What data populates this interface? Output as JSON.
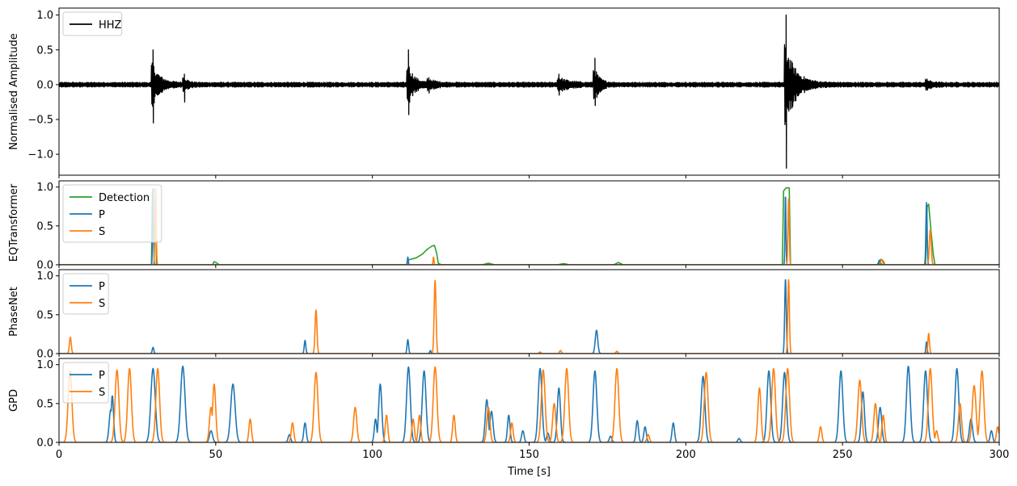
{
  "chart_data": {
    "type": "line",
    "xlabel": "Time [s]",
    "xlim": [
      0,
      300
    ],
    "xticks": [
      "0",
      "50",
      "100",
      "150",
      "200",
      "250",
      "300"
    ],
    "sharex": true,
    "panels": [
      {
        "ylabel": "Normalised Amplitude",
        "ylim": [
          -1.3,
          1.1
        ],
        "yticks": [
          {
            "value": 1.0,
            "label": "1.0"
          },
          {
            "value": 0.5,
            "label": "0.5"
          },
          {
            "value": 0.0,
            "label": "0.0"
          },
          {
            "value": -0.5,
            "label": "−0.5"
          },
          {
            "value": -1.0,
            "label": "−1.0"
          }
        ],
        "legend": "top-left",
        "series": [
          {
            "name": "HHZ",
            "color": "#000000",
            "style": "waveform",
            "noise": 0.035,
            "events": [
              {
                "t": 30,
                "amp": 0.5,
                "min": -0.55,
                "decay": 1.5
              },
              {
                "t": 40,
                "amp": 0.15,
                "min": -0.25,
                "decay": 0.8
              },
              {
                "t": 111.5,
                "amp": 0.5,
                "min": -0.43,
                "decay": 1.2
              },
              {
                "t": 118,
                "amp": 0.1,
                "min": -0.12,
                "decay": 1.5
              },
              {
                "t": 159.5,
                "amp": 0.15,
                "min": -0.15,
                "decay": 2.0
              },
              {
                "t": 171,
                "amp": 0.38,
                "min": -0.3,
                "decay": 1.0
              },
              {
                "t": 232,
                "amp": 1.0,
                "min": -1.2,
                "decay": 2.0
              },
              {
                "t": 277,
                "amp": 0.08,
                "min": -0.08,
                "decay": 1.0
              }
            ]
          }
        ]
      },
      {
        "ylabel": "EQTransformer",
        "ylim": [
          0,
          1.08
        ],
        "yticks": [
          {
            "value": 0.0,
            "label": "0.0"
          },
          {
            "value": 0.5,
            "label": "0.5"
          },
          {
            "value": 1.0,
            "label": "1.0"
          }
        ],
        "legend": "top-left",
        "series": [
          {
            "name": "Detection",
            "color": "#2ca02c",
            "style": "segments",
            "segments": [
              [
                [
                  0,
                  0
                ],
                [
                  29.5,
                  0
                ],
                [
                  29.8,
                  0.95
                ],
                [
                  30.8,
                  0.95
                ],
                [
                  31.1,
                  0
                ],
                [
                  49,
                  0
                ],
                [
                  49.5,
                  0.04
                ],
                [
                  50.5,
                  0.02
                ],
                [
                  51,
                  0
                ],
                [
                  111,
                  0
                ],
                [
                  111.3,
                  0.06
                ],
                [
                  114,
                  0.09
                ],
                [
                  116,
                  0.14
                ],
                [
                  117.5,
                  0.2
                ],
                [
                  119,
                  0.24
                ],
                [
                  119.8,
                  0.25
                ],
                [
                  120.5,
                  0.15
                ],
                [
                  121,
                  0.02
                ],
                [
                  122,
                  0
                ],
                [
                  135,
                  0
                ],
                [
                  137,
                  0.02
                ],
                [
                  139,
                  0
                ],
                [
                  159,
                  0
                ],
                [
                  161,
                  0.015
                ],
                [
                  163,
                  0
                ],
                [
                  177,
                  0
                ],
                [
                  178.5,
                  0.03
                ],
                [
                  180,
                  0
                ],
                [
                  230.8,
                  0
                ],
                [
                  231.2,
                  0.95
                ],
                [
                  232,
                  0.99
                ],
                [
                  233,
                  0.99
                ],
                [
                  233.4,
                  0
                ],
                [
                  261.5,
                  0
                ],
                [
                  262.2,
                  0.07
                ],
                [
                  263,
                  0.05
                ],
                [
                  263.5,
                  0
                ],
                [
                  276.5,
                  0
                ],
                [
                  277,
                  0.75
                ],
                [
                  277.5,
                  0.78
                ],
                [
                  278.2,
                  0.45
                ],
                [
                  279,
                  0.12
                ],
                [
                  279.5,
                  0
                ],
                [
                  300,
                  0
                ]
              ]
            ]
          },
          {
            "name": "P",
            "color": "#1f77b4",
            "style": "peaks",
            "peaks": [
              {
                "t": 30,
                "h": 0.98,
                "w": 0.15
              },
              {
                "t": 111.3,
                "h": 0.1,
                "w": 0.15
              },
              {
                "t": 231.8,
                "h": 0.9,
                "w": 0.15
              },
              {
                "t": 261.8,
                "h": 0.06,
                "w": 0.3
              },
              {
                "t": 276.8,
                "h": 0.8,
                "w": 0.2
              }
            ]
          },
          {
            "name": "S",
            "color": "#ff7f0e",
            "style": "peaks",
            "peaks": [
              {
                "t": 30.8,
                "h": 0.98,
                "w": 0.2
              },
              {
                "t": 119.5,
                "h": 0.1,
                "w": 0.15
              },
              {
                "t": 232.8,
                "h": 0.85,
                "w": 0.2
              },
              {
                "t": 262.5,
                "h": 0.07,
                "w": 0.3
              },
              {
                "t": 278,
                "h": 0.45,
                "w": 0.3
              }
            ]
          }
        ]
      },
      {
        "ylabel": "PhaseNet",
        "ylim": [
          0,
          1.08
        ],
        "yticks": [
          {
            "value": 0.0,
            "label": "0.0"
          },
          {
            "value": 0.5,
            "label": "0.5"
          },
          {
            "value": 1.0,
            "label": "1.0"
          }
        ],
        "legend": "top-left",
        "series": [
          {
            "name": "P",
            "color": "#1f77b4",
            "style": "peaks",
            "peaks": [
              {
                "t": 30,
                "h": 0.08,
                "w": 0.25
              },
              {
                "t": 78.5,
                "h": 0.17,
                "w": 0.25
              },
              {
                "t": 111.3,
                "h": 0.18,
                "w": 0.25
              },
              {
                "t": 118.5,
                "h": 0.04,
                "w": 0.2
              },
              {
                "t": 171.5,
                "h": 0.3,
                "w": 0.4
              },
              {
                "t": 231.8,
                "h": 0.96,
                "w": 0.25
              },
              {
                "t": 276.8,
                "h": 0.15,
                "w": 0.2
              }
            ]
          },
          {
            "name": "S",
            "color": "#ff7f0e",
            "style": "peaks",
            "peaks": [
              {
                "t": 3.6,
                "h": 0.21,
                "w": 0.3
              },
              {
                "t": 82,
                "h": 0.56,
                "w": 0.3
              },
              {
                "t": 120,
                "h": 0.94,
                "w": 0.3
              },
              {
                "t": 153.5,
                "h": 0.02,
                "w": 0.3
              },
              {
                "t": 160,
                "h": 0.04,
                "w": 0.3
              },
              {
                "t": 178,
                "h": 0.03,
                "w": 0.3
              },
              {
                "t": 232.8,
                "h": 0.95,
                "w": 0.25
              },
              {
                "t": 277.5,
                "h": 0.26,
                "w": 0.25
              }
            ]
          }
        ]
      },
      {
        "ylabel": "GPD",
        "ylim": [
          0,
          1.08
        ],
        "yticks": [
          {
            "value": 0.0,
            "label": "0.0"
          },
          {
            "value": 0.5,
            "label": "0.5"
          },
          {
            "value": 1.0,
            "label": "1.0"
          }
        ],
        "legend": "top-left",
        "series": [
          {
            "name": "P",
            "color": "#1f77b4",
            "style": "peaks",
            "peaks": [
              {
                "t": 16.5,
                "h": 0.42,
                "w": 0.5
              },
              {
                "t": 17,
                "h": 0.6,
                "w": 0.4
              },
              {
                "t": 30,
                "h": 0.95,
                "w": 0.7
              },
              {
                "t": 39.5,
                "h": 0.98,
                "w": 0.7
              },
              {
                "t": 48.5,
                "h": 0.15,
                "w": 0.5
              },
              {
                "t": 55.5,
                "h": 0.75,
                "w": 0.7
              },
              {
                "t": 73.5,
                "h": 0.1,
                "w": 0.4
              },
              {
                "t": 78.5,
                "h": 0.25,
                "w": 0.4
              },
              {
                "t": 101,
                "h": 0.3,
                "w": 0.4
              },
              {
                "t": 102.5,
                "h": 0.75,
                "w": 0.5
              },
              {
                "t": 111.5,
                "h": 0.97,
                "w": 0.6
              },
              {
                "t": 116.5,
                "h": 0.92,
                "w": 0.6
              },
              {
                "t": 136.5,
                "h": 0.55,
                "w": 0.5
              },
              {
                "t": 138,
                "h": 0.4,
                "w": 0.5
              },
              {
                "t": 143.5,
                "h": 0.35,
                "w": 0.4
              },
              {
                "t": 148,
                "h": 0.15,
                "w": 0.4
              },
              {
                "t": 153.5,
                "h": 0.95,
                "w": 0.6
              },
              {
                "t": 156,
                "h": 0.12,
                "w": 0.4
              },
              {
                "t": 159.5,
                "h": 0.7,
                "w": 0.5
              },
              {
                "t": 171,
                "h": 0.92,
                "w": 0.6
              },
              {
                "t": 176,
                "h": 0.08,
                "w": 0.4
              },
              {
                "t": 184.5,
                "h": 0.28,
                "w": 0.4
              },
              {
                "t": 187,
                "h": 0.2,
                "w": 0.4
              },
              {
                "t": 196,
                "h": 0.25,
                "w": 0.4
              },
              {
                "t": 205.5,
                "h": 0.85,
                "w": 0.6
              },
              {
                "t": 217,
                "h": 0.05,
                "w": 0.4
              },
              {
                "t": 226.5,
                "h": 0.92,
                "w": 0.6
              },
              {
                "t": 231.5,
                "h": 0.9,
                "w": 0.6
              },
              {
                "t": 249.5,
                "h": 0.92,
                "w": 0.6
              },
              {
                "t": 256.5,
                "h": 0.65,
                "w": 0.5
              },
              {
                "t": 262,
                "h": 0.45,
                "w": 0.5
              },
              {
                "t": 271,
                "h": 0.98,
                "w": 0.6
              },
              {
                "t": 276.5,
                "h": 0.92,
                "w": 0.6
              },
              {
                "t": 286.5,
                "h": 0.95,
                "w": 0.6
              },
              {
                "t": 291,
                "h": 0.3,
                "w": 0.5
              },
              {
                "t": 297.5,
                "h": 0.15,
                "w": 0.4
              }
            ]
          },
          {
            "name": "S",
            "color": "#ff7f0e",
            "style": "peaks",
            "peaks": [
              {
                "t": 3.5,
                "h": 0.92,
                "w": 0.6
              },
              {
                "t": 18.5,
                "h": 0.93,
                "w": 0.6
              },
              {
                "t": 22.5,
                "h": 0.95,
                "w": 0.6
              },
              {
                "t": 31.5,
                "h": 0.95,
                "w": 0.6
              },
              {
                "t": 48.5,
                "h": 0.45,
                "w": 0.5
              },
              {
                "t": 49.5,
                "h": 0.75,
                "w": 0.5
              },
              {
                "t": 61,
                "h": 0.3,
                "w": 0.4
              },
              {
                "t": 74.5,
                "h": 0.25,
                "w": 0.4
              },
              {
                "t": 82,
                "h": 0.9,
                "w": 0.6
              },
              {
                "t": 94.5,
                "h": 0.45,
                "w": 0.5
              },
              {
                "t": 104.5,
                "h": 0.35,
                "w": 0.4
              },
              {
                "t": 113,
                "h": 0.3,
                "w": 0.4
              },
              {
                "t": 115,
                "h": 0.35,
                "w": 0.4
              },
              {
                "t": 120,
                "h": 0.97,
                "w": 0.6
              },
              {
                "t": 126,
                "h": 0.35,
                "w": 0.4
              },
              {
                "t": 137,
                "h": 0.45,
                "w": 0.5
              },
              {
                "t": 144.5,
                "h": 0.25,
                "w": 0.4
              },
              {
                "t": 154.5,
                "h": 0.93,
                "w": 0.6
              },
              {
                "t": 158,
                "h": 0.5,
                "w": 0.5
              },
              {
                "t": 162,
                "h": 0.95,
                "w": 0.6
              },
              {
                "t": 178,
                "h": 0.95,
                "w": 0.6
              },
              {
                "t": 188,
                "h": 0.1,
                "w": 0.4
              },
              {
                "t": 206.5,
                "h": 0.9,
                "w": 0.6
              },
              {
                "t": 223.5,
                "h": 0.7,
                "w": 0.5
              },
              {
                "t": 228,
                "h": 0.95,
                "w": 0.6
              },
              {
                "t": 232.5,
                "h": 0.95,
                "w": 0.6
              },
              {
                "t": 243,
                "h": 0.2,
                "w": 0.4
              },
              {
                "t": 255.5,
                "h": 0.8,
                "w": 0.6
              },
              {
                "t": 260.5,
                "h": 0.5,
                "w": 0.5
              },
              {
                "t": 263,
                "h": 0.35,
                "w": 0.4
              },
              {
                "t": 278,
                "h": 0.95,
                "w": 0.6
              },
              {
                "t": 280,
                "h": 0.15,
                "w": 0.4
              },
              {
                "t": 287.5,
                "h": 0.5,
                "w": 0.5
              },
              {
                "t": 292,
                "h": 0.73,
                "w": 0.6
              },
              {
                "t": 294.5,
                "h": 0.92,
                "w": 0.6
              },
              {
                "t": 299.5,
                "h": 0.2,
                "w": 0.4
              }
            ]
          }
        ]
      }
    ]
  }
}
